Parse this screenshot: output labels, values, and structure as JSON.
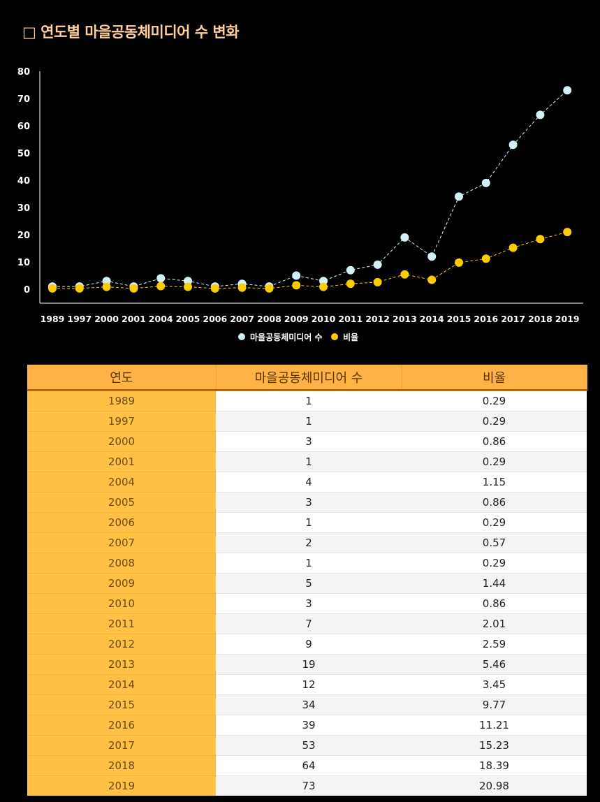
{
  "title": "□ 연도별 마을공동체미디어 수 변화",
  "colors": {
    "series1": "#d4f0f7",
    "series2": "#ffcc00",
    "header": "#ffb347",
    "year_col": "#ffc145"
  },
  "chart_data": {
    "type": "line",
    "x": [
      "1989",
      "1997",
      "2000",
      "2001",
      "2004",
      "2005",
      "2006",
      "2007",
      "2008",
      "2009",
      "2010",
      "2011",
      "2012",
      "2013",
      "2014",
      "2015",
      "2016",
      "2017",
      "2018",
      "2019"
    ],
    "series": [
      {
        "name": "마을공동체미디어 수",
        "values": [
          1,
          1,
          3,
          1,
          4,
          3,
          1,
          2,
          1,
          5,
          3,
          7,
          9,
          19,
          12,
          34,
          39,
          53,
          64,
          73
        ]
      },
      {
        "name": "비율",
        "values": [
          0.29,
          0.29,
          0.86,
          0.29,
          1.15,
          0.86,
          0.29,
          0.57,
          0.29,
          1.44,
          0.86,
          2.01,
          2.59,
          5.46,
          3.45,
          9.77,
          11.21,
          15.23,
          18.39,
          20.98
        ]
      }
    ],
    "yticks": [
      "0",
      "10",
      "20",
      "30",
      "40",
      "50",
      "60",
      "70",
      "80"
    ],
    "ylim": [
      0,
      80
    ],
    "legend": "bottom-center",
    "grid": false
  },
  "table": {
    "headers": [
      "연도",
      "마을공동체미디어 수",
      "비율"
    ],
    "rows": [
      [
        "1989",
        "1",
        "0.29"
      ],
      [
        "1997",
        "1",
        "0.29"
      ],
      [
        "2000",
        "3",
        "0.86"
      ],
      [
        "2001",
        "1",
        "0.29"
      ],
      [
        "2004",
        "4",
        "1.15"
      ],
      [
        "2005",
        "3",
        "0.86"
      ],
      [
        "2006",
        "1",
        "0.29"
      ],
      [
        "2007",
        "2",
        "0.57"
      ],
      [
        "2008",
        "1",
        "0.29"
      ],
      [
        "2009",
        "5",
        "1.44"
      ],
      [
        "2010",
        "3",
        "0.86"
      ],
      [
        "2011",
        "7",
        "2.01"
      ],
      [
        "2012",
        "9",
        "2.59"
      ],
      [
        "2013",
        "19",
        "5.46"
      ],
      [
        "2014",
        "12",
        "3.45"
      ],
      [
        "2015",
        "34",
        "9.77"
      ],
      [
        "2016",
        "39",
        "11.21"
      ],
      [
        "2017",
        "53",
        "15.23"
      ],
      [
        "2018",
        "64",
        "18.39"
      ],
      [
        "2019",
        "73",
        "20.98"
      ]
    ]
  }
}
